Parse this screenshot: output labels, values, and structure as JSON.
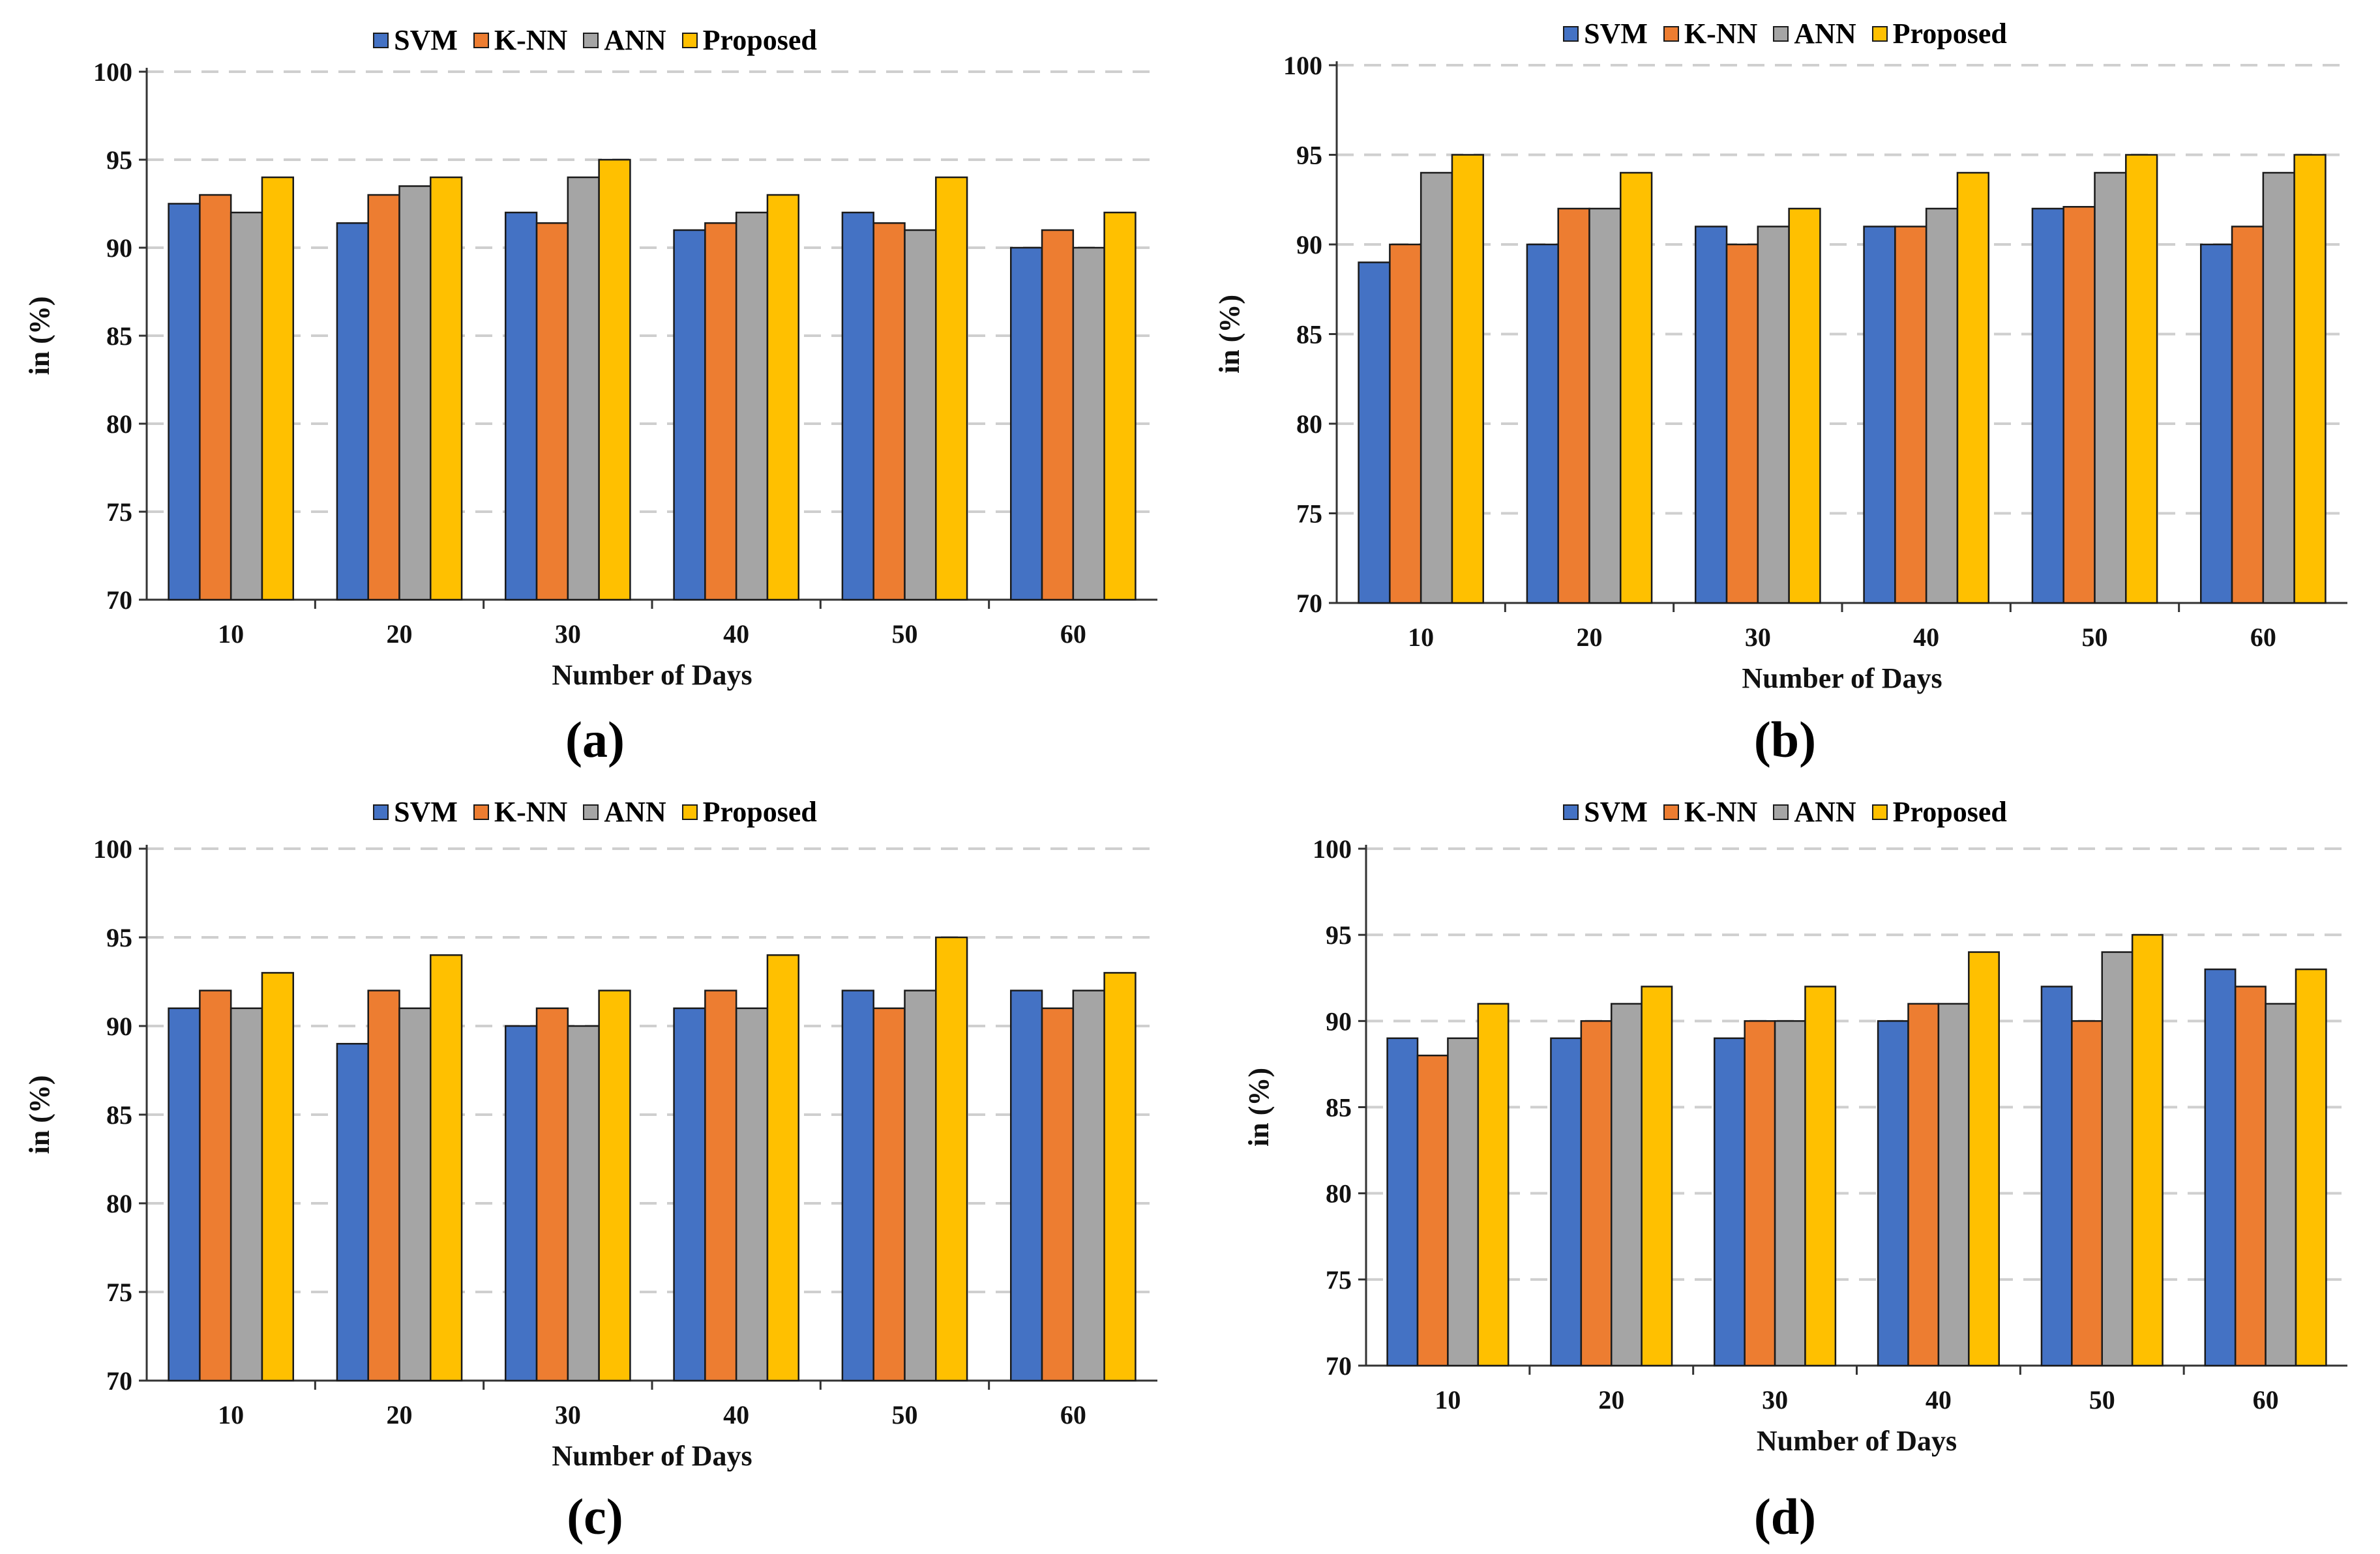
{
  "colors": {
    "SVM": "#4472C4",
    "K-NN": "#ED7D31",
    "ANN": "#A5A5A5",
    "Proposed": "#FFC000"
  },
  "chart_data": [
    {
      "type": "bar",
      "panel_label": "(a)",
      "title": "",
      "xlabel": "Number of Days",
      "ylabel": "in (%)",
      "ylim": [
        70,
        100
      ],
      "yticks": [
        70,
        75,
        80,
        85,
        90,
        95,
        100
      ],
      "grid": "dashed-horizontal",
      "legend": "top-center",
      "categories": [
        "10",
        "20",
        "30",
        "40",
        "50",
        "60"
      ],
      "series": [
        {
          "name": "SVM",
          "values": [
            92.5,
            91.4,
            92,
            91,
            92,
            90
          ]
        },
        {
          "name": "K-NN",
          "values": [
            93,
            93,
            91.4,
            91.4,
            91.4,
            91
          ]
        },
        {
          "name": "ANN",
          "values": [
            92,
            93.5,
            94,
            92,
            91,
            90
          ]
        },
        {
          "name": "Proposed",
          "values": [
            94,
            94,
            95,
            93,
            94,
            92
          ]
        }
      ]
    },
    {
      "type": "bar",
      "panel_label": "(b)",
      "title": "",
      "xlabel": "Number of Days",
      "ylabel": "in (%)",
      "ylim": [
        70,
        100
      ],
      "yticks": [
        70,
        75,
        80,
        85,
        90,
        95,
        100
      ],
      "grid": "dashed-horizontal",
      "legend": "top-center",
      "categories": [
        "10",
        "20",
        "30",
        "40",
        "50",
        "60"
      ],
      "series": [
        {
          "name": "SVM",
          "values": [
            89,
            90,
            91,
            91,
            92,
            90
          ]
        },
        {
          "name": "K-NN",
          "values": [
            90,
            92,
            90,
            91,
            92.1,
            91
          ]
        },
        {
          "name": "ANN",
          "values": [
            94,
            92,
            91,
            92,
            94,
            94
          ]
        },
        {
          "name": "Proposed",
          "values": [
            95,
            94,
            92,
            94,
            95,
            95
          ]
        }
      ]
    },
    {
      "type": "bar",
      "panel_label": "(c)",
      "title": "",
      "xlabel": "Number of Days",
      "ylabel": "in (%)",
      "ylim": [
        70,
        100
      ],
      "yticks": [
        70,
        75,
        80,
        85,
        90,
        95,
        100
      ],
      "grid": "dashed-horizontal",
      "legend": "top-center",
      "categories": [
        "10",
        "20",
        "30",
        "40",
        "50",
        "60"
      ],
      "series": [
        {
          "name": "SVM",
          "values": [
            91,
            89,
            90,
            91,
            92,
            92
          ]
        },
        {
          "name": "K-NN",
          "values": [
            92,
            92,
            91,
            92,
            91,
            91
          ]
        },
        {
          "name": "ANN",
          "values": [
            91,
            91,
            90,
            91,
            92,
            92
          ]
        },
        {
          "name": "Proposed",
          "values": [
            93,
            94,
            92,
            94,
            95,
            93
          ]
        }
      ]
    },
    {
      "type": "bar",
      "panel_label": "(d)",
      "title": "",
      "xlabel": "Number of Days",
      "ylabel": "in (%)",
      "ylim": [
        70,
        100
      ],
      "yticks": [
        70,
        75,
        80,
        85,
        90,
        95,
        100
      ],
      "grid": "dashed-horizontal",
      "legend": "top-center",
      "categories": [
        "10",
        "20",
        "30",
        "40",
        "50",
        "60"
      ],
      "series": [
        {
          "name": "SVM",
          "values": [
            89,
            89,
            89,
            90,
            92,
            93
          ]
        },
        {
          "name": "K-NN",
          "values": [
            88,
            90,
            90,
            91,
            90,
            92
          ]
        },
        {
          "name": "ANN",
          "values": [
            89,
            91,
            90,
            91,
            94,
            91
          ]
        },
        {
          "name": "Proposed",
          "values": [
            91,
            92,
            92,
            94,
            95,
            93
          ]
        }
      ]
    }
  ]
}
